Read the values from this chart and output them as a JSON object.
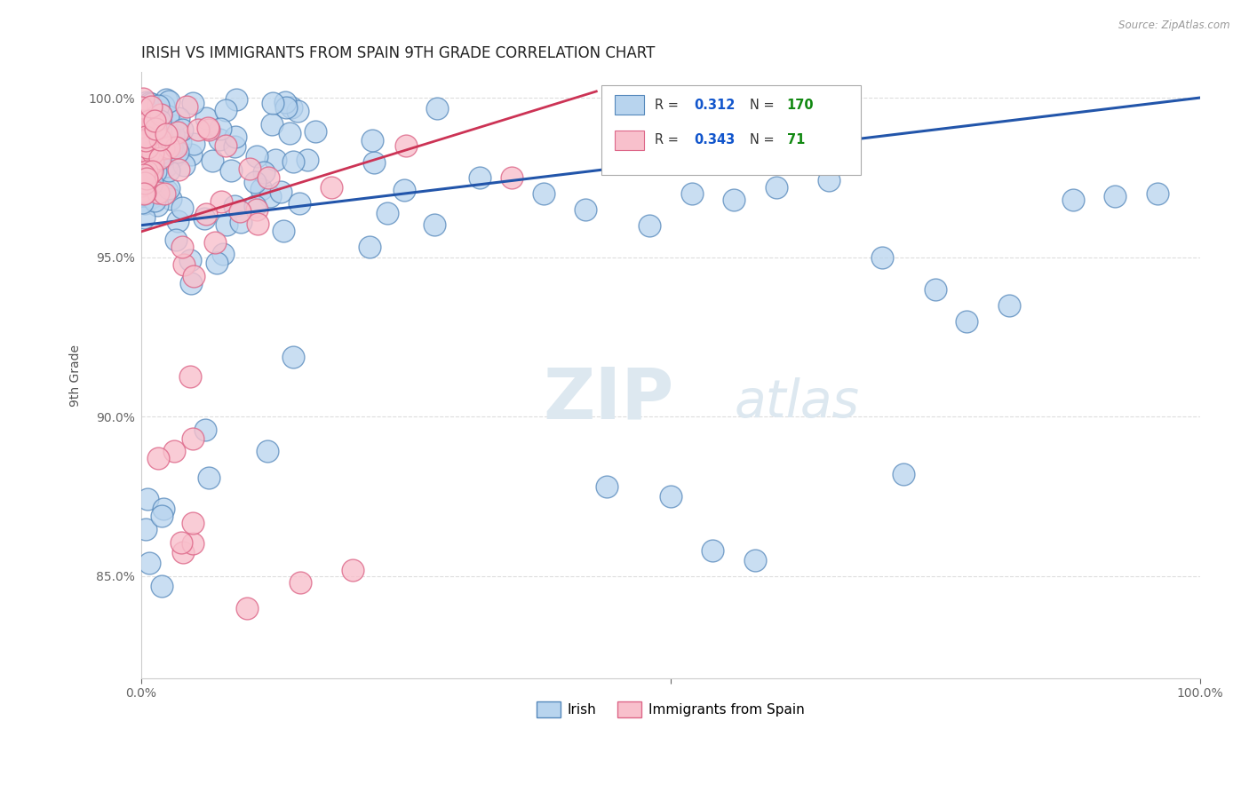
{
  "title": "IRISH VS IMMIGRANTS FROM SPAIN 9TH GRADE CORRELATION CHART",
  "source_text": "Source: ZipAtlas.com",
  "ylabel": "9th Grade",
  "xlim": [
    0.0,
    1.0
  ],
  "ylim": [
    0.818,
    1.008
  ],
  "yticks": [
    0.85,
    0.9,
    0.95,
    1.0
  ],
  "yticklabels": [
    "85.0%",
    "90.0%",
    "95.0%",
    "100.0%"
  ],
  "irish_color": "#b8d4ee",
  "irish_edge_color": "#5588bb",
  "spain_color": "#f8c0cc",
  "spain_edge_color": "#dd6688",
  "irish_line_color": "#2255aa",
  "spain_line_color": "#cc3355",
  "irish_R": 0.312,
  "irish_N": 170,
  "spain_R": 0.343,
  "spain_N": 71,
  "legend_R_color": "#1155cc",
  "legend_N_color": "#118811",
  "watermark_color": "#dde8f0",
  "background_color": "#ffffff",
  "grid_color": "#dddddd"
}
